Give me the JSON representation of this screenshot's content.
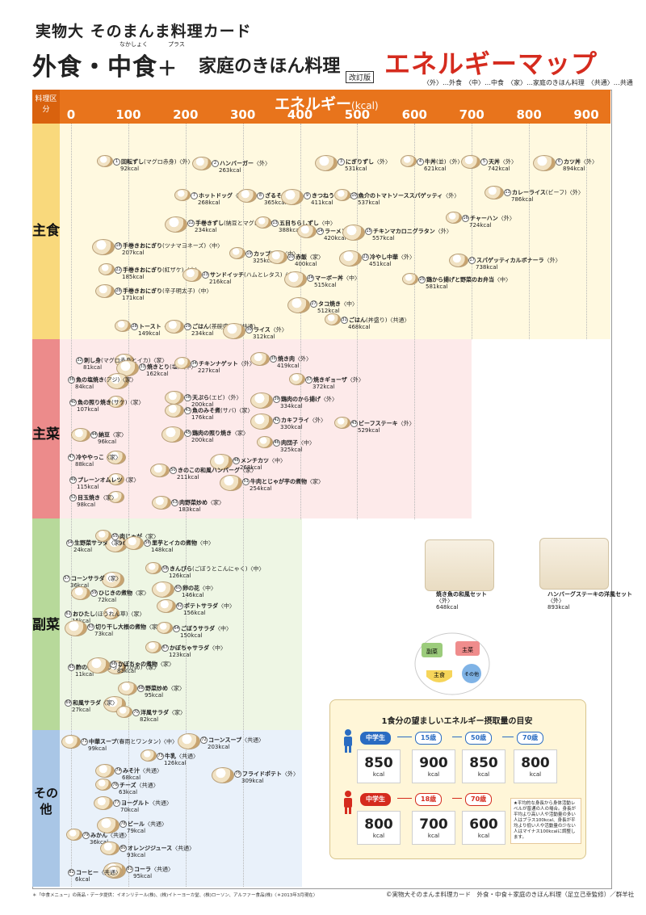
{
  "header": {
    "series": "実物大 そのまんま料理カード",
    "main": "外食・中食",
    "plus": "＋",
    "mid": "家庭のきほん料理",
    "red": "エネルギーマップ",
    "ruby_naka": "なかしょく",
    "ruby_plus": "プラス",
    "revised": "改訂版",
    "legend": "〈外〉…外食　〈中〉…中食　〈家〉…家庭のきほん料理　〈共通〉…共通"
  },
  "axis": {
    "category_header": "料理区分",
    "title": "エネルギー",
    "unit": "(kcal)",
    "ticks": [
      "0",
      "100",
      "200",
      "300",
      "400",
      "500",
      "600",
      "700",
      "800",
      "900"
    ]
  },
  "categories": [
    {
      "label": "主食",
      "color": "#f9d97c",
      "bg": "#fff9e0"
    },
    {
      "label": "主菜",
      "color": "#ec8b8b",
      "bg": "#fdeaea"
    },
    {
      "label": "副菜",
      "color": "#b7d99a",
      "bg": "#eef6e4"
    },
    {
      "label": "その他",
      "color": "#a9c6e6",
      "bg": "#e9f1fa"
    }
  ],
  "colors": {
    "axis": "#e8741c",
    "title_red": "#d52b1e"
  },
  "items": [
    {
      "no": "1",
      "name": "回転ずし",
      "sub": "(マグロ赤身)〈外〉",
      "kcal": "92kcal"
    },
    {
      "no": "2",
      "name": "ハンバーガー",
      "sub": "〈外〉",
      "kcal": "263kcal"
    },
    {
      "no": "3",
      "name": "にぎりずし",
      "sub": "〈外〉",
      "kcal": "531kcal"
    },
    {
      "no": "4",
      "name": "牛丼",
      "sub": "(並)〈外〉",
      "kcal": "621kcal"
    },
    {
      "no": "5",
      "name": "天丼",
      "sub": "〈外〉",
      "kcal": "742kcal"
    },
    {
      "no": "6",
      "name": "カツ丼",
      "sub": "〈外〉",
      "kcal": "894kcal"
    },
    {
      "no": "7",
      "name": "ホットドッグ",
      "sub": "〈外〉",
      "kcal": "268kcal"
    },
    {
      "no": "8",
      "name": "ざるそば",
      "sub": "〈外〉",
      "kcal": "365kcal"
    },
    {
      "no": "9",
      "name": "きつねうどん",
      "sub": "〈外〉",
      "kcal": "411kcal"
    },
    {
      "no": "10",
      "name": "魚介のトマトソーススパゲッティ",
      "sub": "〈外〉",
      "kcal": "537kcal"
    },
    {
      "no": "11",
      "name": "カレーライス",
      "sub": "(ビーフ)〈外〉",
      "kcal": "786kcal"
    },
    {
      "no": "12",
      "name": "手巻きずし",
      "sub": "(納豆とマグロ)〈中〉",
      "kcal": "234kcal"
    },
    {
      "no": "13",
      "name": "五目ちらしずし",
      "sub": "〈中〉",
      "kcal": "388kcal"
    },
    {
      "no": "14",
      "name": "ラーメン",
      "sub": "〈外〉",
      "kcal": "420kcal"
    },
    {
      "no": "15",
      "name": "チキンマカロニグラタン",
      "sub": "〈外〉",
      "kcal": "557kcal"
    },
    {
      "no": "16",
      "name": "チャーハン",
      "sub": "〈外〉",
      "kcal": "724kcal"
    },
    {
      "no": "17",
      "name": "スパゲッティカルボナーラ",
      "sub": "〈外〉",
      "kcal": "738kcal"
    },
    {
      "no": "18",
      "name": "手巻きおにぎり",
      "sub": "(ツナマヨネーズ)〈中〉",
      "kcal": "207kcal"
    },
    {
      "no": "19",
      "name": "カップめん",
      "sub": "〈中〉",
      "kcal": "325kcal"
    },
    {
      "no": "20",
      "name": "赤飯",
      "sub": "〈家〉",
      "kcal": "400kcal"
    },
    {
      "no": "21",
      "name": "冷やし中華",
      "sub": "〈外〉",
      "kcal": "451kcal"
    },
    {
      "no": "22",
      "name": "手巻きおにぎり",
      "sub": "(紅ザケ)〈中〉",
      "kcal": "185kcal"
    },
    {
      "no": "23",
      "name": "サンドイッチ",
      "sub": "(ハムとレタス)〈中〉",
      "kcal": "216kcal"
    },
    {
      "no": "24",
      "name": "マーボー丼",
      "sub": "〈中〉",
      "kcal": "515kcal"
    },
    {
      "no": "25",
      "name": "鶏から揚げと野菜のお弁当",
      "sub": "〈中〉",
      "kcal": "581kcal"
    },
    {
      "no": "26",
      "name": "手巻きおにぎり",
      "sub": "(辛子明太子)〈中〉",
      "kcal": "171kcal"
    },
    {
      "no": "27",
      "name": "タコ焼き",
      "sub": "〈中〉",
      "kcal": "512kcal"
    },
    {
      "no": "28",
      "name": "トースト",
      "sub": "〈共通〉",
      "kcal": "149kcal"
    },
    {
      "no": "29",
      "name": "ごはん",
      "sub": "(茶碗盛り)〈共通〉",
      "kcal": "234kcal"
    },
    {
      "no": "30",
      "name": "ライス",
      "sub": "〈外〉",
      "kcal": "312kcal"
    },
    {
      "no": "31",
      "name": "ごはん",
      "sub": "(丼盛り)〈共通〉",
      "kcal": "468kcal"
    },
    {
      "no": "32",
      "name": "刺し身",
      "sub": "(マグロ赤身とイカ)〈家〉",
      "kcal": "81kcal"
    },
    {
      "no": "33",
      "name": "焼きとり",
      "sub": "(塩)〈中〉",
      "kcal": "162kcal"
    },
    {
      "no": "34",
      "name": "チキンナゲット",
      "sub": "〈外〉",
      "kcal": "227kcal"
    },
    {
      "no": "35",
      "name": "焼き肉",
      "sub": "〈外〉",
      "kcal": "419kcal"
    },
    {
      "no": "36",
      "name": "魚の塩焼き",
      "sub": "(アジ)〈家〉",
      "kcal": "84kcal"
    },
    {
      "no": "37",
      "name": "焼きギョーザ",
      "sub": "〈外〉",
      "kcal": "372kcal"
    },
    {
      "no": "38",
      "name": "天ぷら",
      "sub": "(エビ)〈外〉",
      "kcal": "200kcal"
    },
    {
      "no": "39",
      "name": "鶏肉のから揚げ",
      "sub": "〈外〉",
      "kcal": "334kcal"
    },
    {
      "no": "40",
      "name": "魚の照り焼き",
      "sub": "(サケ)〈家〉",
      "kcal": "107kcal"
    },
    {
      "no": "41",
      "name": "魚のみそ煮",
      "sub": "(サバ)〈家〉",
      "kcal": "176kcal"
    },
    {
      "no": "42",
      "name": "カキフライ",
      "sub": "〈外〉",
      "kcal": "330kcal"
    },
    {
      "no": "43",
      "name": "ビーフステーキ",
      "sub": "〈外〉",
      "kcal": "529kcal"
    },
    {
      "no": "44",
      "name": "納豆",
      "sub": "〈家〉",
      "kcal": "96kcal"
    },
    {
      "no": "45",
      "name": "鶏肉の照り焼き",
      "sub": "〈家〉",
      "kcal": "200kcal"
    },
    {
      "no": "46",
      "name": "肉団子",
      "sub": "〈中〉",
      "kcal": "325kcal"
    },
    {
      "no": "47",
      "name": "冷ややっこ",
      "sub": "〈家〉",
      "kcal": "88kcal"
    },
    {
      "no": "48",
      "name": "メンチカツ",
      "sub": "〈中〉",
      "kcal": "268kcal"
    },
    {
      "no": "49",
      "name": "プレーンオムレツ",
      "sub": "〈家〉",
      "kcal": "115kcal"
    },
    {
      "no": "50",
      "name": "きのこの和風ハンバーグ",
      "sub": "〈家〉",
      "kcal": "211kcal"
    },
    {
      "no": "51",
      "name": "牛肉とじゃが芋の煮物",
      "sub": "〈家〉",
      "kcal": "254kcal"
    },
    {
      "no": "52",
      "name": "目玉焼き",
      "sub": "〈家〉",
      "kcal": "98kcal"
    },
    {
      "no": "53",
      "name": "肉野菜炒め",
      "sub": "〈家〉",
      "kcal": "183kcal"
    },
    {
      "no": "54",
      "name": "生野菜サラダ",
      "sub": "〈家〉",
      "kcal": "24kcal"
    },
    {
      "no": "55",
      "name": "肉じゃが",
      "sub": "〈家〉",
      "kcal": "96kcal"
    },
    {
      "no": "56",
      "name": "里芋とイカの煮物",
      "sub": "〈中〉",
      "kcal": "148kcal"
    },
    {
      "no": "57",
      "name": "コーンサラダ",
      "sub": "〈家〉",
      "kcal": "36kcal"
    },
    {
      "no": "58",
      "name": "きんぴら",
      "sub": "(ごぼうとこんにゃく)〈中〉",
      "kcal": "126kcal"
    },
    {
      "no": "59",
      "name": "ひじきの煮物",
      "sub": "〈家〉",
      "kcal": "72kcal"
    },
    {
      "no": "60",
      "name": "卵の花",
      "sub": "〈中〉",
      "kcal": "146kcal"
    },
    {
      "no": "61",
      "name": "おひたし",
      "sub": "(ほうれん草)〈家〉",
      "kcal": "15kcal"
    },
    {
      "no": "62",
      "name": "ポテトサラダ",
      "sub": "〈中〉",
      "kcal": "156kcal"
    },
    {
      "no": "63",
      "name": "切り干し大根の煮物",
      "sub": "〈家〉",
      "kcal": "73kcal"
    },
    {
      "no": "64",
      "name": "ごぼうサラダ",
      "sub": "〈中〉",
      "kcal": "150kcal"
    },
    {
      "no": "65",
      "name": "酢の物",
      "sub": "(きゅうりとわかめ)〈家〉",
      "kcal": "11kcal"
    },
    {
      "no": "66",
      "name": "かぼちゃの煮物",
      "sub": "〈家〉",
      "kcal": "83kcal"
    },
    {
      "no": "67",
      "name": "かぼちゃサラダ",
      "sub": "〈中〉",
      "kcal": "123kcal"
    },
    {
      "no": "68",
      "name": "野菜炒め",
      "sub": "〈家〉",
      "kcal": "95kcal"
    },
    {
      "no": "69",
      "name": "和風サラダ",
      "sub": "〈家〉",
      "kcal": "27kcal"
    },
    {
      "no": "70",
      "name": "洋風サラダ",
      "sub": "〈家〉",
      "kcal": "82kcal"
    },
    {
      "no": "71",
      "name": "中華スープ",
      "sub": "(春雨とワンタン)〈中〉",
      "kcal": "99kcal"
    },
    {
      "no": "72",
      "name": "コーンスープ",
      "sub": "〈共通〉",
      "kcal": "203kcal"
    },
    {
      "no": "73",
      "name": "牛乳",
      "sub": "〈共通〉",
      "kcal": "126kcal"
    },
    {
      "no": "74",
      "name": "みそ汁",
      "sub": "〈共通〉",
      "kcal": "68kcal"
    },
    {
      "no": "75",
      "name": "フライドポテト",
      "sub": "〈外〉",
      "kcal": "309kcal"
    },
    {
      "no": "76",
      "name": "チーズ",
      "sub": "〈共通〉",
      "kcal": "63kcal"
    },
    {
      "no": "77",
      "name": "ヨーグルト",
      "sub": "〈共通〉",
      "kcal": "70kcal"
    },
    {
      "no": "78",
      "name": "ビール",
      "sub": "〈共通〉",
      "kcal": "79kcal"
    },
    {
      "no": "79",
      "name": "みかん",
      "sub": "〈共通〉",
      "kcal": "36kcal"
    },
    {
      "no": "80",
      "name": "オレンジジュース",
      "sub": "〈共通〉",
      "kcal": "93kcal"
    },
    {
      "no": "81",
      "name": "コーラ",
      "sub": "〈共通〉",
      "kcal": "95kcal"
    },
    {
      "no": "82",
      "name": "コーヒー",
      "sub": "〈共通〉",
      "kcal": "6kcal"
    }
  ],
  "sets": [
    {
      "name": "焼き魚の和風セット",
      "sub": "〈外〉",
      "kcal": "648kcal"
    },
    {
      "name": "ハンバーグステーキの洋風セット",
      "sub": "〈外〉",
      "kcal": "893kcal"
    }
  ],
  "diagram": {
    "shusai": "主菜",
    "fukusai": "副菜",
    "shushoku": "主食",
    "sonota": "その他"
  },
  "panel": {
    "title": "1食分の望ましいエネルギー摂取量の目安",
    "male_ages": [
      "中学生",
      "15歳",
      "50歳",
      "70歳"
    ],
    "male_values": [
      "850",
      "900",
      "850",
      "800"
    ],
    "female_ages": [
      "中学生",
      "18歳",
      "70歳"
    ],
    "female_values": [
      "800",
      "700",
      "600"
    ],
    "unit": "kcal",
    "note": "★平均的な身長から身体活動レベルが普通の人の場合。身長が平均より高い人や活動量の多い人はプラス100kcal、身長が平均より低い人や活動量の少ない人はマイナス100kcalに調整します。"
  },
  "footer": {
    "left": "＊「中食メニュー」の商品・データ提供：イオンリテール(株)、(株)イトーヨーカ堂、(株)ローソン、アルファー食品(株)〈＊2013年3月現在〉",
    "right": "©実物大そのまんま料理カード　外食・中食＋家庭のきほん料理（足立己幸監修）／群羊社"
  }
}
